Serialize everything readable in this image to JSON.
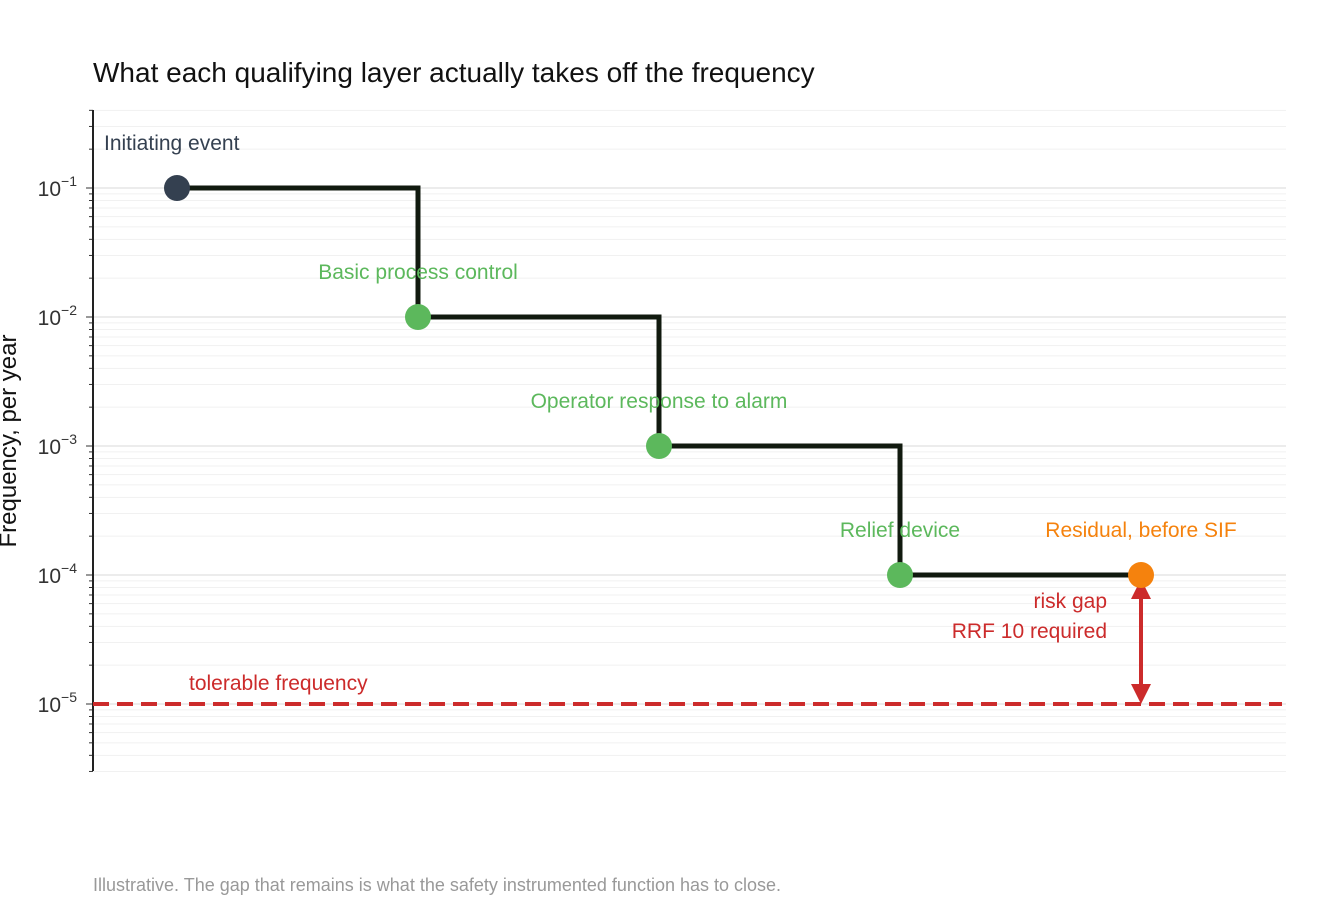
{
  "chart_data": {
    "type": "line",
    "line_shape": "step",
    "title": "What each qualifying layer actually takes off the frequency",
    "ylabel": "Frequency, per year",
    "xlabel": "",
    "y_scale": "log",
    "ylim": [
      3e-06,
      0.4
    ],
    "y_ticks": [
      {
        "base": "10",
        "exp": "−1",
        "value": 0.1
      },
      {
        "base": "10",
        "exp": "−2",
        "value": 0.01
      },
      {
        "base": "10",
        "exp": "−3",
        "value": 0.001
      },
      {
        "base": "10",
        "exp": "−4",
        "value": 0.0001
      },
      {
        "base": "10",
        "exp": "−5",
        "value": 1e-05
      }
    ],
    "grid": true,
    "points": [
      {
        "label": "Initiating event",
        "value": 0.1,
        "color": "#344050",
        "label_color": "#344050"
      },
      {
        "label": "Basic process control",
        "value": 0.01,
        "color": "#5cb85c",
        "label_color": "#5cb85c"
      },
      {
        "label": "Operator response to alarm",
        "value": 0.001,
        "color": "#5cb85c",
        "label_color": "#5cb85c"
      },
      {
        "label": "Relief device",
        "value": 0.0001,
        "color": "#5cb85c",
        "label_color": "#5cb85c"
      },
      {
        "label": "Residual, before SIF",
        "value": 0.0001,
        "color": "#f5820d",
        "label_color": "#f5820d"
      }
    ],
    "tolerable": {
      "label": "tolerable frequency",
      "value": 1e-05,
      "color": "#cc2b2b"
    },
    "gap_annotation": {
      "line1": "risk gap",
      "line2": "RRF 10 required",
      "color": "#cc2b2b"
    },
    "line_color": "#111a0f"
  },
  "caption": "Illustrative. The gap that remains is what the safety instrumented function has to close."
}
